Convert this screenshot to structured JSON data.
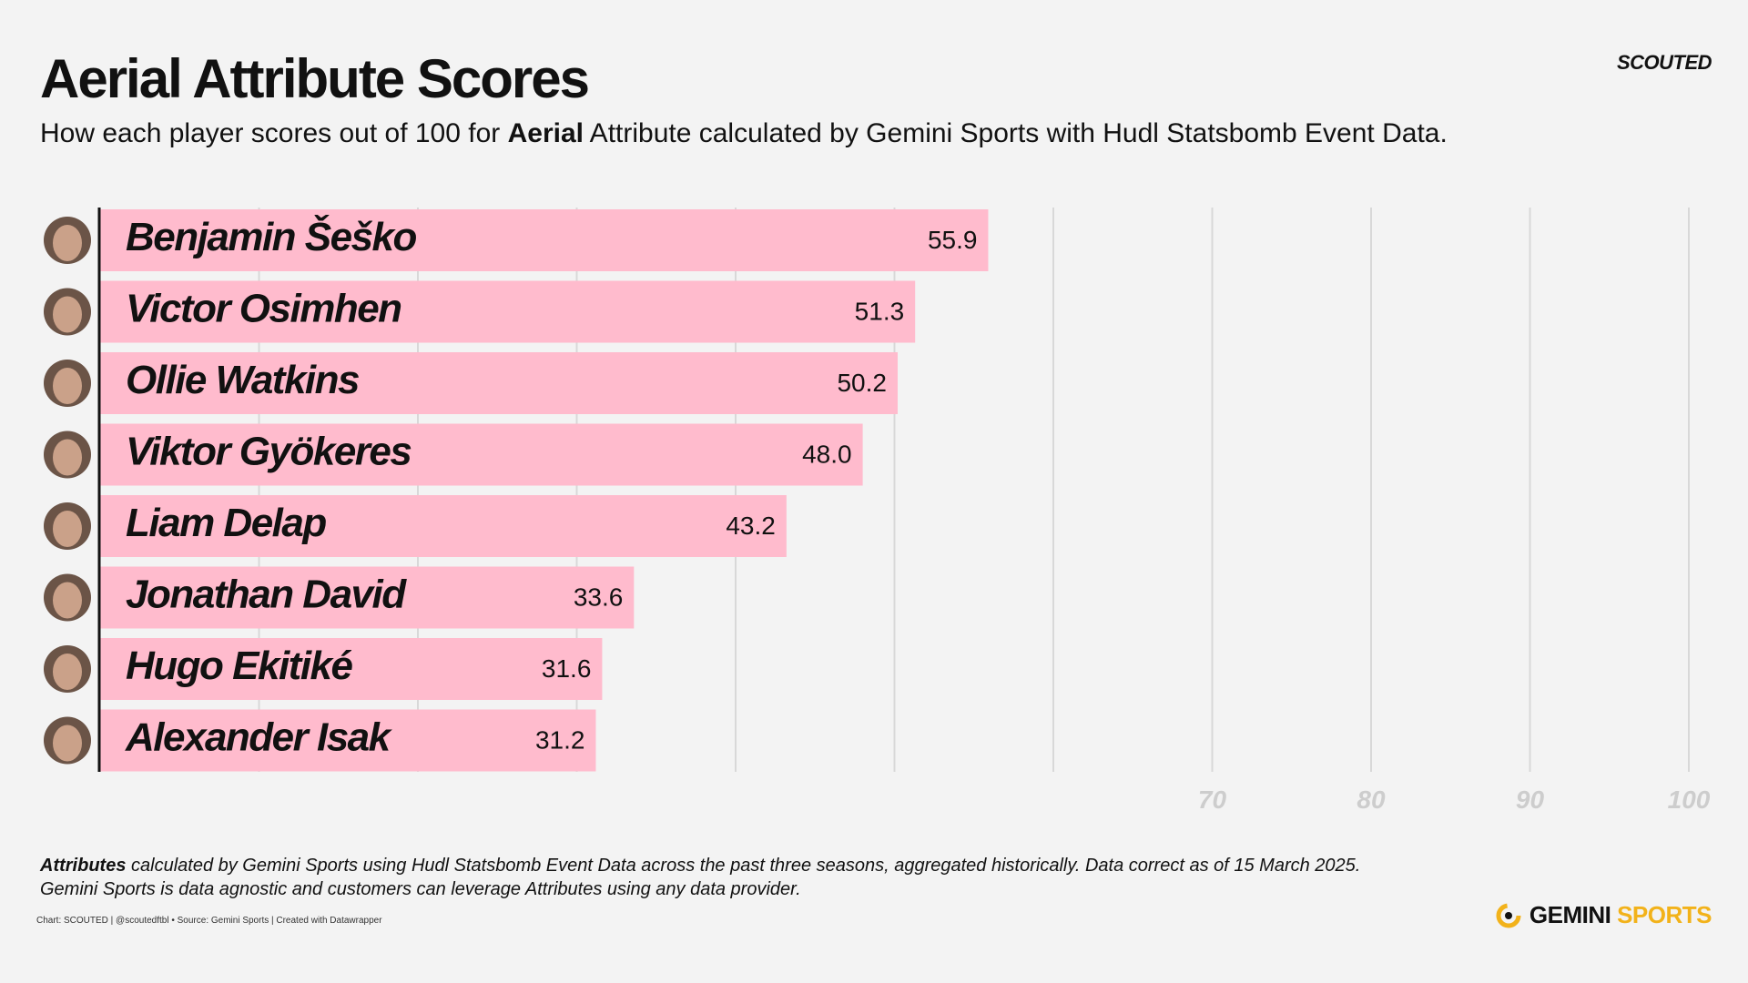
{
  "header": {
    "title": "Aerial Attribute Scores",
    "subtitle_pre": "How each player scores out of 100 for ",
    "subtitle_bold": "Aerial",
    "subtitle_post": " Attribute calculated by Gemini Sports with Hudl Statsbomb Event Data.",
    "brand": "SCOUTED"
  },
  "chart_data": {
    "type": "bar",
    "orientation": "horizontal",
    "title": "Aerial Attribute Scores",
    "categories": [
      "Benjamin Šeško",
      "Victor Osimhen",
      "Ollie Watkins",
      "Viktor  Gyökeres",
      "Liam Delap",
      "Jonathan David",
      "Hugo Ekitiké",
      "Alexander Isak"
    ],
    "values": [
      55.9,
      51.3,
      50.2,
      48.0,
      43.2,
      33.6,
      31.6,
      31.2
    ],
    "value_labels": [
      "55.9",
      "51.3",
      "50.2",
      "48.0",
      "43.2",
      "33.6",
      "31.6",
      "31.2"
    ],
    "xlim": [
      0,
      100
    ],
    "gridlines": [
      10,
      20,
      30,
      40,
      50,
      60,
      70,
      80,
      90,
      100
    ],
    "tick_labels": [
      "70",
      "80",
      "90",
      "100"
    ],
    "bar_color": "#ffbbcd",
    "grid_color": "#d8d8d8",
    "tick_color": "#cdcdcd",
    "grid": true
  },
  "footer": {
    "note_bold": "Attributes",
    "note_line1": " calculated by Gemini Sports using Hudl Statsbomb Event Data across the past three seasons, aggregated historically. Data correct as of 15 March 2025.",
    "note_line2": "Gemini Sports is data agnostic and customers can leverage Attributes using any data provider.",
    "credit": "Chart: SCOUTED | @scoutedftbl • Source: Gemini Sports | Created with Datawrapper",
    "logo_a": "GEMINI",
    "logo_b": "SPORTS",
    "logo_accent": "#f2b21a"
  }
}
